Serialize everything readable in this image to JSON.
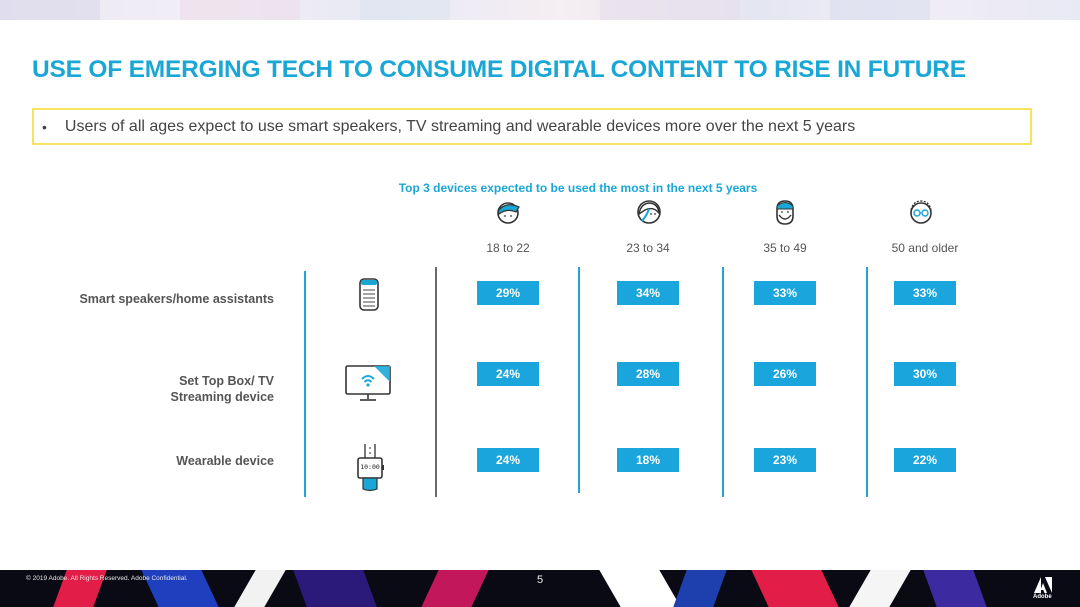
{
  "slide": {
    "title": "USE OF EMERGING TECH TO CONSUME DIGITAL CONTENT TO RISE IN FUTURE",
    "callout": {
      "bullet": "•",
      "text": "Users of all ages expect to use smart speakers, TV streaming and wearable devices more over the next 5 years"
    },
    "footer": {
      "copyright": "© 2019 Adobe.  All Rights Reserved.  Adobe Confidential.",
      "page_number": "5",
      "brand": "Adobe"
    }
  },
  "colors": {
    "accent": "#1aa7d6",
    "cell_fill": "#1aa5dc",
    "callout_border": "#f7e45c"
  },
  "chart_data": {
    "type": "table",
    "title": "Top 3 devices expected to be used the most in the next 5 years",
    "columns": [
      {
        "label": "18 to 22",
        "icon": "young-person-icon"
      },
      {
        "label": "23 to 34",
        "icon": "adult-woman-icon"
      },
      {
        "label": "35 to 49",
        "icon": "bearded-man-icon"
      },
      {
        "label": "50 and older",
        "icon": "older-person-icon"
      }
    ],
    "rows": [
      {
        "label": "Smart speakers/home assistants",
        "icon": "smart-speaker-icon",
        "values": [
          "29%",
          "34%",
          "33%",
          "33%"
        ]
      },
      {
        "label": "Set Top Box/ TV Streaming device",
        "icon": "tv-streaming-icon",
        "values": [
          "24%",
          "28%",
          "26%",
          "30%"
        ]
      },
      {
        "label": "Wearable device",
        "icon": "smartwatch-icon",
        "values": [
          "24%",
          "18%",
          "23%",
          "22%"
        ]
      }
    ],
    "watch_face_text": "10:00"
  }
}
